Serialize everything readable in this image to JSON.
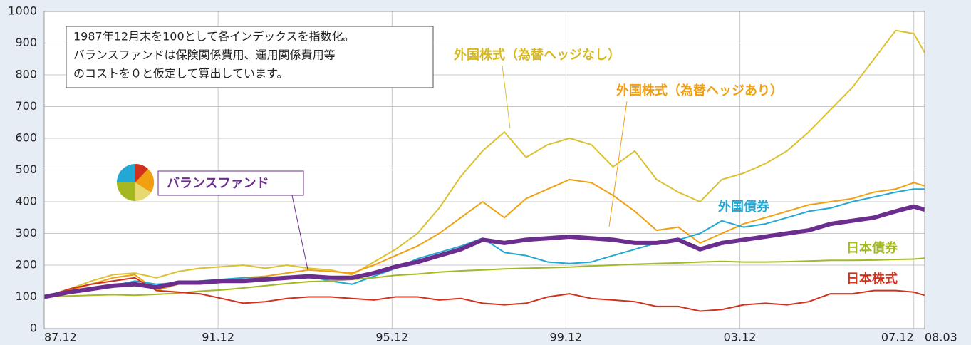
{
  "chart_data": {
    "type": "line",
    "annotation": [
      "1987年12月末を100として各インデックスを指数化。",
      "バランスファンドは保険関係費用、運用関係費用等",
      "のコストを０と仮定して算出しています。"
    ],
    "x": [
      1987.917,
      1988.5,
      1989,
      1989.5,
      1990,
      1990.5,
      1991,
      1991.5,
      1992,
      1992.5,
      1993,
      1993.5,
      1994,
      1994.5,
      1995,
      1995.5,
      1996,
      1996.5,
      1997,
      1997.5,
      1998,
      1998.5,
      1999,
      1999.5,
      2000,
      2000.5,
      2001,
      2001.5,
      2002,
      2002.5,
      2003,
      2003.5,
      2004,
      2004.5,
      2005,
      2005.5,
      2006,
      2006.5,
      2007,
      2007.5,
      2007.917,
      2008.167
    ],
    "series": [
      {
        "name": "外国株式（為替ヘッジなし）",
        "color": "#dcc12e",
        "width": 2,
        "values": [
          100,
          125,
          150,
          170,
          175,
          160,
          180,
          190,
          195,
          200,
          190,
          200,
          190,
          185,
          170,
          210,
          250,
          300,
          380,
          480,
          560,
          620,
          540,
          580,
          600,
          580,
          510,
          560,
          470,
          430,
          400,
          470,
          490,
          520,
          560,
          620,
          690,
          760,
          850,
          940,
          930,
          870
        ]
      },
      {
        "name": "外国株式（為替ヘッジあり）",
        "color": "#f0a010",
        "width": 2,
        "values": [
          100,
          120,
          140,
          160,
          170,
          120,
          140,
          150,
          150,
          160,
          165,
          175,
          185,
          180,
          175,
          200,
          230,
          260,
          300,
          350,
          400,
          350,
          410,
          440,
          470,
          460,
          420,
          370,
          310,
          320,
          270,
          300,
          330,
          350,
          370,
          390,
          400,
          410,
          430,
          440,
          460,
          450
        ]
      },
      {
        "name": "外国債券",
        "color": "#22a8d4",
        "width": 2,
        "values": [
          100,
          115,
          125,
          135,
          150,
          140,
          145,
          150,
          155,
          160,
          160,
          165,
          165,
          150,
          140,
          165,
          190,
          220,
          240,
          260,
          285,
          240,
          230,
          210,
          205,
          210,
          230,
          250,
          270,
          280,
          300,
          340,
          320,
          330,
          350,
          370,
          380,
          400,
          415,
          430,
          440,
          440
        ]
      },
      {
        "name": "日本債券",
        "color": "#a6b821",
        "width": 2,
        "values": [
          100,
          103,
          105,
          107,
          105,
          108,
          112,
          118,
          122,
          128,
          135,
          142,
          148,
          150,
          155,
          160,
          168,
          172,
          178,
          182,
          185,
          188,
          190,
          192,
          194,
          197,
          200,
          203,
          205,
          207,
          210,
          212,
          210,
          210,
          211,
          213,
          215,
          215,
          216,
          218,
          219,
          222
        ]
      },
      {
        "name": "日本株式",
        "color": "#d0321e",
        "width": 2,
        "values": [
          100,
          125,
          140,
          150,
          160,
          120,
          115,
          110,
          95,
          80,
          85,
          95,
          100,
          100,
          95,
          90,
          100,
          100,
          90,
          95,
          80,
          75,
          80,
          100,
          110,
          95,
          90,
          85,
          70,
          70,
          55,
          60,
          75,
          80,
          75,
          85,
          110,
          110,
          120,
          120,
          115,
          105
        ]
      },
      {
        "name": "バランスファンド",
        "color": "#6b2e8f",
        "width": 6,
        "values": [
          100,
          115,
          125,
          135,
          140,
          130,
          145,
          145,
          150,
          150,
          155,
          160,
          165,
          160,
          160,
          175,
          195,
          210,
          230,
          250,
          280,
          270,
          280,
          285,
          290,
          285,
          280,
          270,
          270,
          280,
          250,
          270,
          280,
          290,
          300,
          310,
          330,
          340,
          350,
          370,
          385,
          375
        ]
      }
    ],
    "xlim": [
      1987.917,
      2008.167
    ],
    "xticks": [
      {
        "value": 1987.917,
        "label": "87.12"
      },
      {
        "value": 1991.917,
        "label": "91.12"
      },
      {
        "value": 1995.917,
        "label": "95.12"
      },
      {
        "value": 1999.917,
        "label": "99.12"
      },
      {
        "value": 2003.917,
        "label": "03.12"
      },
      {
        "value": 2007.917,
        "label": "07.12"
      },
      {
        "value": 2008.167,
        "label": "08.03"
      }
    ],
    "ylim": [
      0,
      1000
    ],
    "yticks": [
      0,
      100,
      200,
      300,
      400,
      500,
      600,
      700,
      800,
      900,
      1000
    ],
    "grid": true
  }
}
